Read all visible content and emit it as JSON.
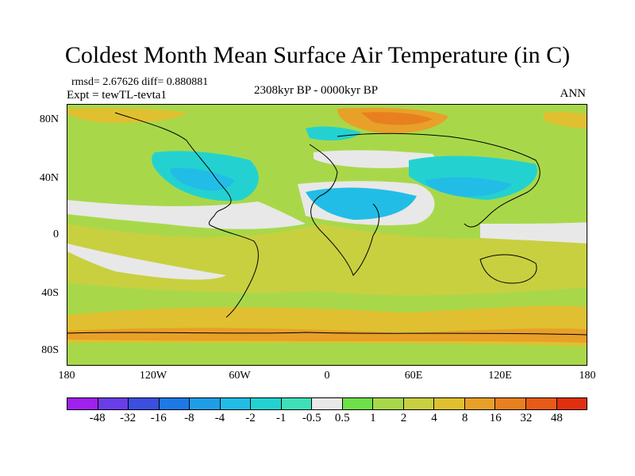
{
  "title": "Coldest Month Mean Surface Air Temperature (in C)",
  "stats": "rmsd= 2.67626 diff= 0.880881",
  "experiment": "Expt = tewTL-tevta1",
  "period": "2308kyr BP - 0000kyr BP",
  "season": "ANN",
  "lat_labels": [
    "80N",
    "40N",
    "0",
    "40S",
    "80S"
  ],
  "lon_labels": [
    "180",
    "120W",
    "60W",
    "0",
    "60E",
    "120E",
    "180"
  ],
  "colorbar": {
    "labels": [
      "-48",
      "-32",
      "-16",
      "-8",
      "-4",
      "-2",
      "-1",
      "-0.5",
      "0.5",
      "1",
      "2",
      "4",
      "8",
      "16",
      "32",
      "48"
    ],
    "colors": [
      "#a020f0",
      "#6a3de8",
      "#3b4fe0",
      "#1e78e6",
      "#1f9ee8",
      "#22bde6",
      "#23d2d0",
      "#3fe0b8",
      "#e8e8e8",
      "#6ee04a",
      "#a8d84a",
      "#c8d040",
      "#e0c030",
      "#e8a028",
      "#e88020",
      "#e85a18",
      "#e03010"
    ]
  },
  "colors": {
    "ocean_warm": "#a8d84a",
    "neutral": "#e8e8e8",
    "cool": "#23d2d0",
    "cooler": "#22bde6",
    "warm": "#c8d040",
    "warmer": "#e0c030",
    "hot": "#e8a028",
    "coastline": "#000000"
  }
}
